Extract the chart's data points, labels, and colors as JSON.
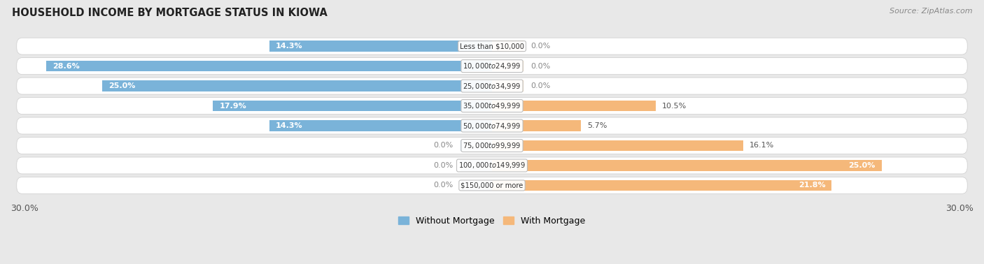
{
  "title": "HOUSEHOLD INCOME BY MORTGAGE STATUS IN KIOWA",
  "source": "Source: ZipAtlas.com",
  "categories": [
    "Less than $10,000",
    "$10,000 to $24,999",
    "$25,000 to $34,999",
    "$35,000 to $49,999",
    "$50,000 to $74,999",
    "$75,000 to $99,999",
    "$100,000 to $149,999",
    "$150,000 or more"
  ],
  "without_mortgage": [
    14.3,
    28.6,
    25.0,
    17.9,
    14.3,
    0.0,
    0.0,
    0.0
  ],
  "with_mortgage": [
    0.0,
    0.0,
    0.0,
    10.5,
    5.7,
    16.1,
    25.0,
    21.8
  ],
  "color_without": "#7ab3d9",
  "color_with": "#f5b87a",
  "color_without_zero": "#b8d4ea",
  "color_with_zero": "#fad9b0",
  "axis_max": 30.0,
  "background_color": "#e8e8e8",
  "legend_without": "Without Mortgage",
  "legend_with": "With Mortgage"
}
